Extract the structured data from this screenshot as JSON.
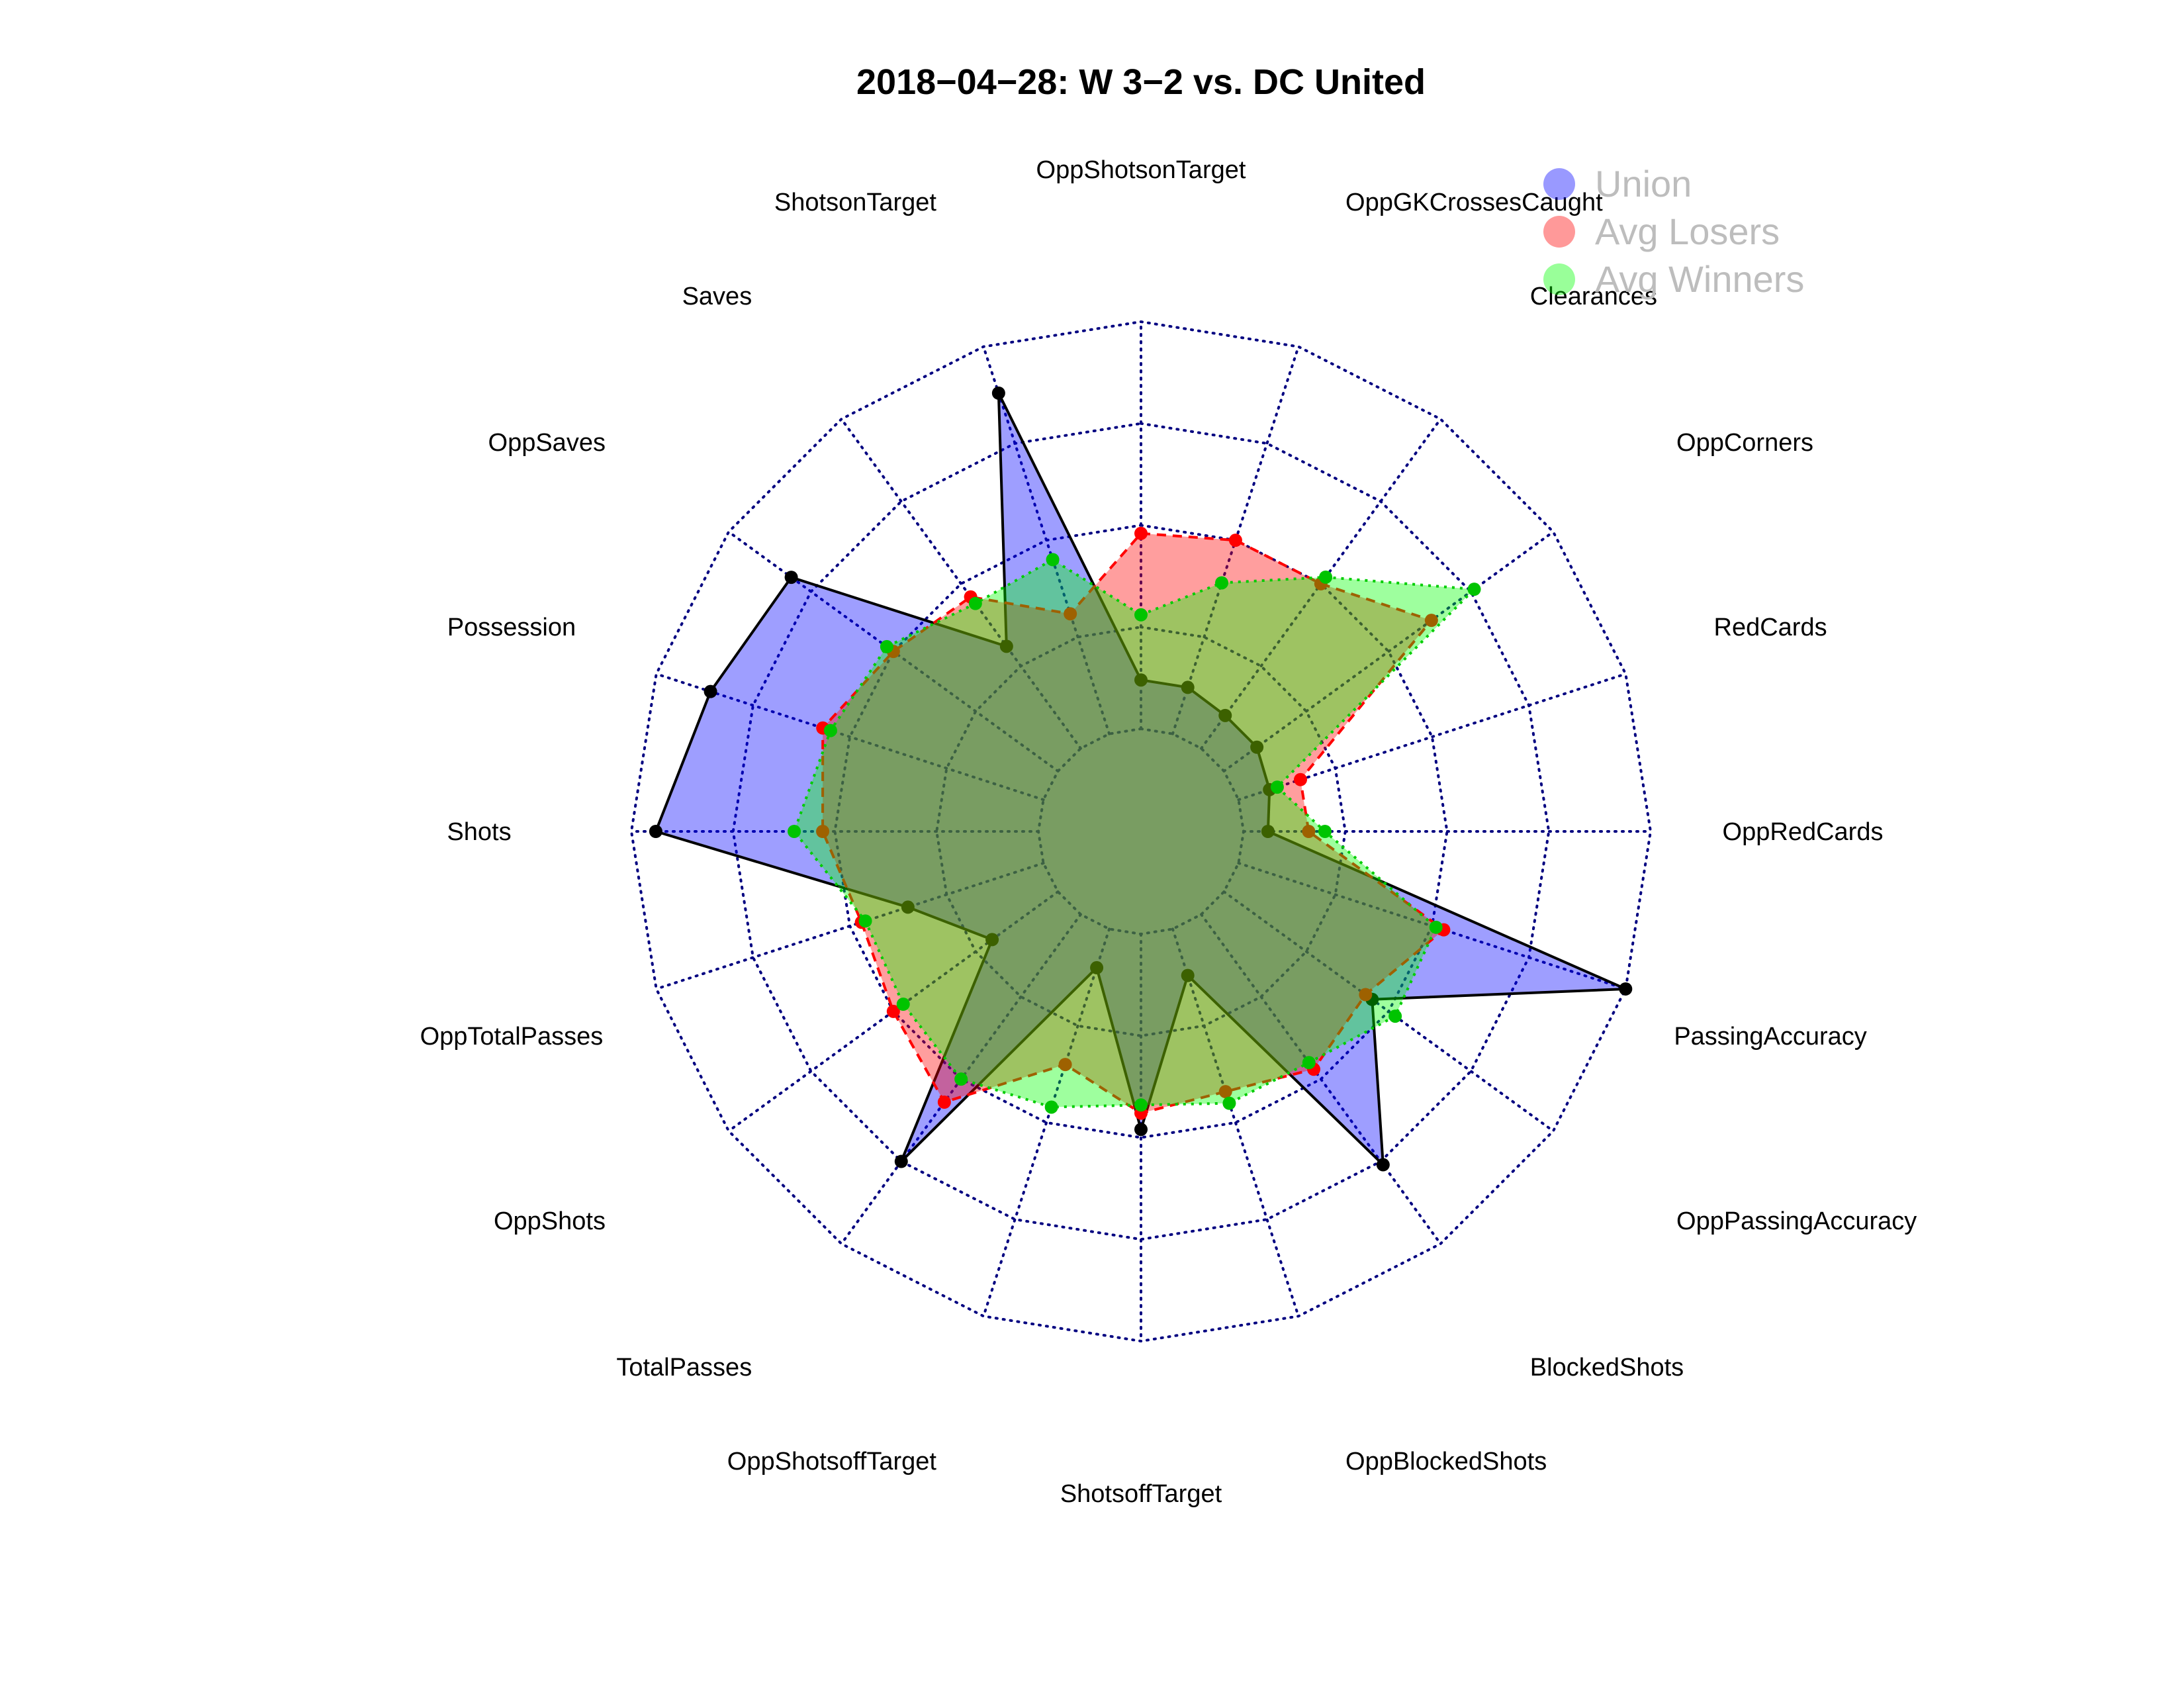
{
  "chart_data": {
    "type": "radar",
    "title": "2018−04−28:  W 3−2   vs. DC United",
    "axes": [
      "OppShotsonTarget",
      "OppGKCrossesCaught",
      "Clearances",
      "OppCorners",
      "RedCards",
      "OppRedCards",
      "PassingAccuracy",
      "OppPassingAccuracy",
      "BlockedShots",
      "OppBlockedShots",
      "ShotsoffTarget",
      "OppShotsoffTarget",
      "TotalPasses",
      "OppShots",
      "OppTotalPasses",
      "Shots",
      "Possession",
      "OppSaves",
      "Saves",
      "ShotsonTarget"
    ],
    "range": [
      0,
      1
    ],
    "rings": 5,
    "grid": true,
    "legend_position": "top-right",
    "series": [
      {
        "name": "Union",
        "color": "#0000ff",
        "values": [
          0.12,
          0.12,
          0.1,
          0.1,
          0.08,
          0.06,
          1.0,
          0.45,
          0.76,
          0.12,
          0.48,
          0.1,
          0.75,
          0.2,
          0.35,
          0.94,
          0.86,
          0.81,
          0.31,
          0.88
        ]
      },
      {
        "name": "Avg Losers",
        "color": "#ff0000",
        "values": [
          0.48,
          0.5,
          0.5,
          0.63,
          0.16,
          0.16,
          0.53,
          0.43,
          0.47,
          0.42,
          0.44,
          0.35,
          0.57,
          0.5,
          0.47,
          0.53,
          0.57,
          0.5,
          0.46,
          0.31
        ]
      },
      {
        "name": "Avg Winners",
        "color": "#00ff00",
        "values": [
          0.28,
          0.39,
          0.52,
          0.76,
          0.1,
          0.2,
          0.51,
          0.52,
          0.45,
          0.45,
          0.42,
          0.46,
          0.5,
          0.47,
          0.46,
          0.6,
          0.55,
          0.52,
          0.44,
          0.45
        ]
      }
    ]
  }
}
